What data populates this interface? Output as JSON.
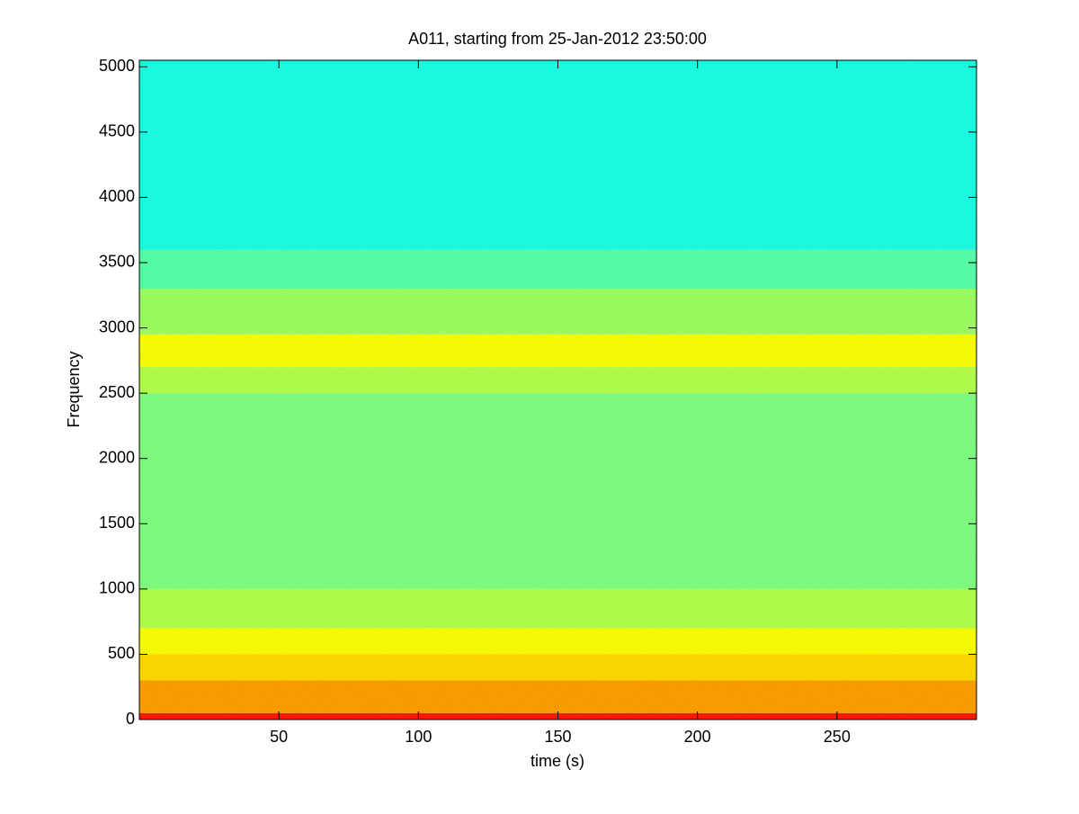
{
  "chart_data": {
    "type": "spectrogram",
    "title": "A011, starting from 25-Jan-2012 23:50:00",
    "x_label": "time (s)",
    "y_label": "Frequency",
    "xlim": [
      0,
      300
    ],
    "xticks": [
      50,
      100,
      150,
      200,
      250
    ],
    "ylim": [
      0,
      5050
    ],
    "yticks": [
      0,
      500,
      1000,
      1500,
      2000,
      2500,
      3000,
      3500,
      4000,
      4500,
      5000
    ],
    "colormap": "jet",
    "bands": [
      0,
      50,
      300,
      500,
      700,
      1000,
      2500,
      2700,
      2950,
      3300,
      3600,
      5050
    ],
    "levels": [
      0.85,
      0.72,
      0.66,
      0.62,
      0.55,
      0.5,
      0.55,
      0.62,
      0.53,
      0.46,
      0.4
    ]
  }
}
